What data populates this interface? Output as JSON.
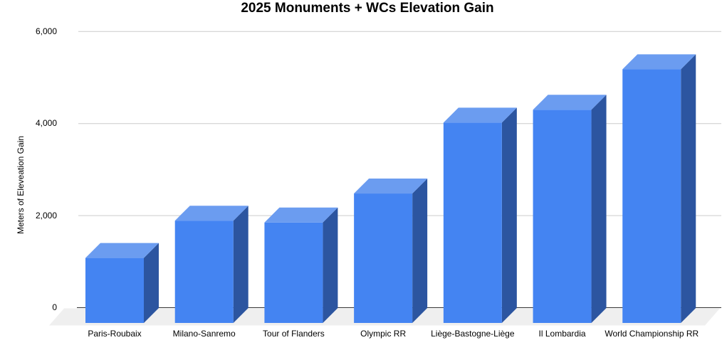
{
  "chart_data": {
    "type": "bar",
    "style": "3d-column",
    "title": "2025 Monuments + WCs Elevation Gain",
    "ylabel": "Meters of Eleveation Gain",
    "xlabel": "",
    "categories": [
      "Paris-Roubaix",
      "Milano-Sanremo",
      "Tour of Flanders",
      "Olympic RR",
      "Liège-Bastogne-Liège",
      "Il Lombardia",
      "World Championship RR"
    ],
    "values": [
      1080,
      1890,
      1850,
      2480,
      4020,
      4300,
      5180
    ],
    "ylim": [
      0,
      6000
    ],
    "yticks": [
      0,
      2000,
      4000,
      6000
    ],
    "ytick_labels": [
      "0",
      "2,000",
      "4,000",
      "6,000"
    ],
    "grid": true,
    "legend": "none",
    "colors": {
      "bar_front": "#4484f2",
      "bar_top": "#6b9cf0",
      "bar_side": "#2c55a0",
      "floor": "#efefef",
      "gridline": "#cccccc",
      "axis_line": "#333333",
      "text": "#000000",
      "background": "#ffffff"
    }
  }
}
